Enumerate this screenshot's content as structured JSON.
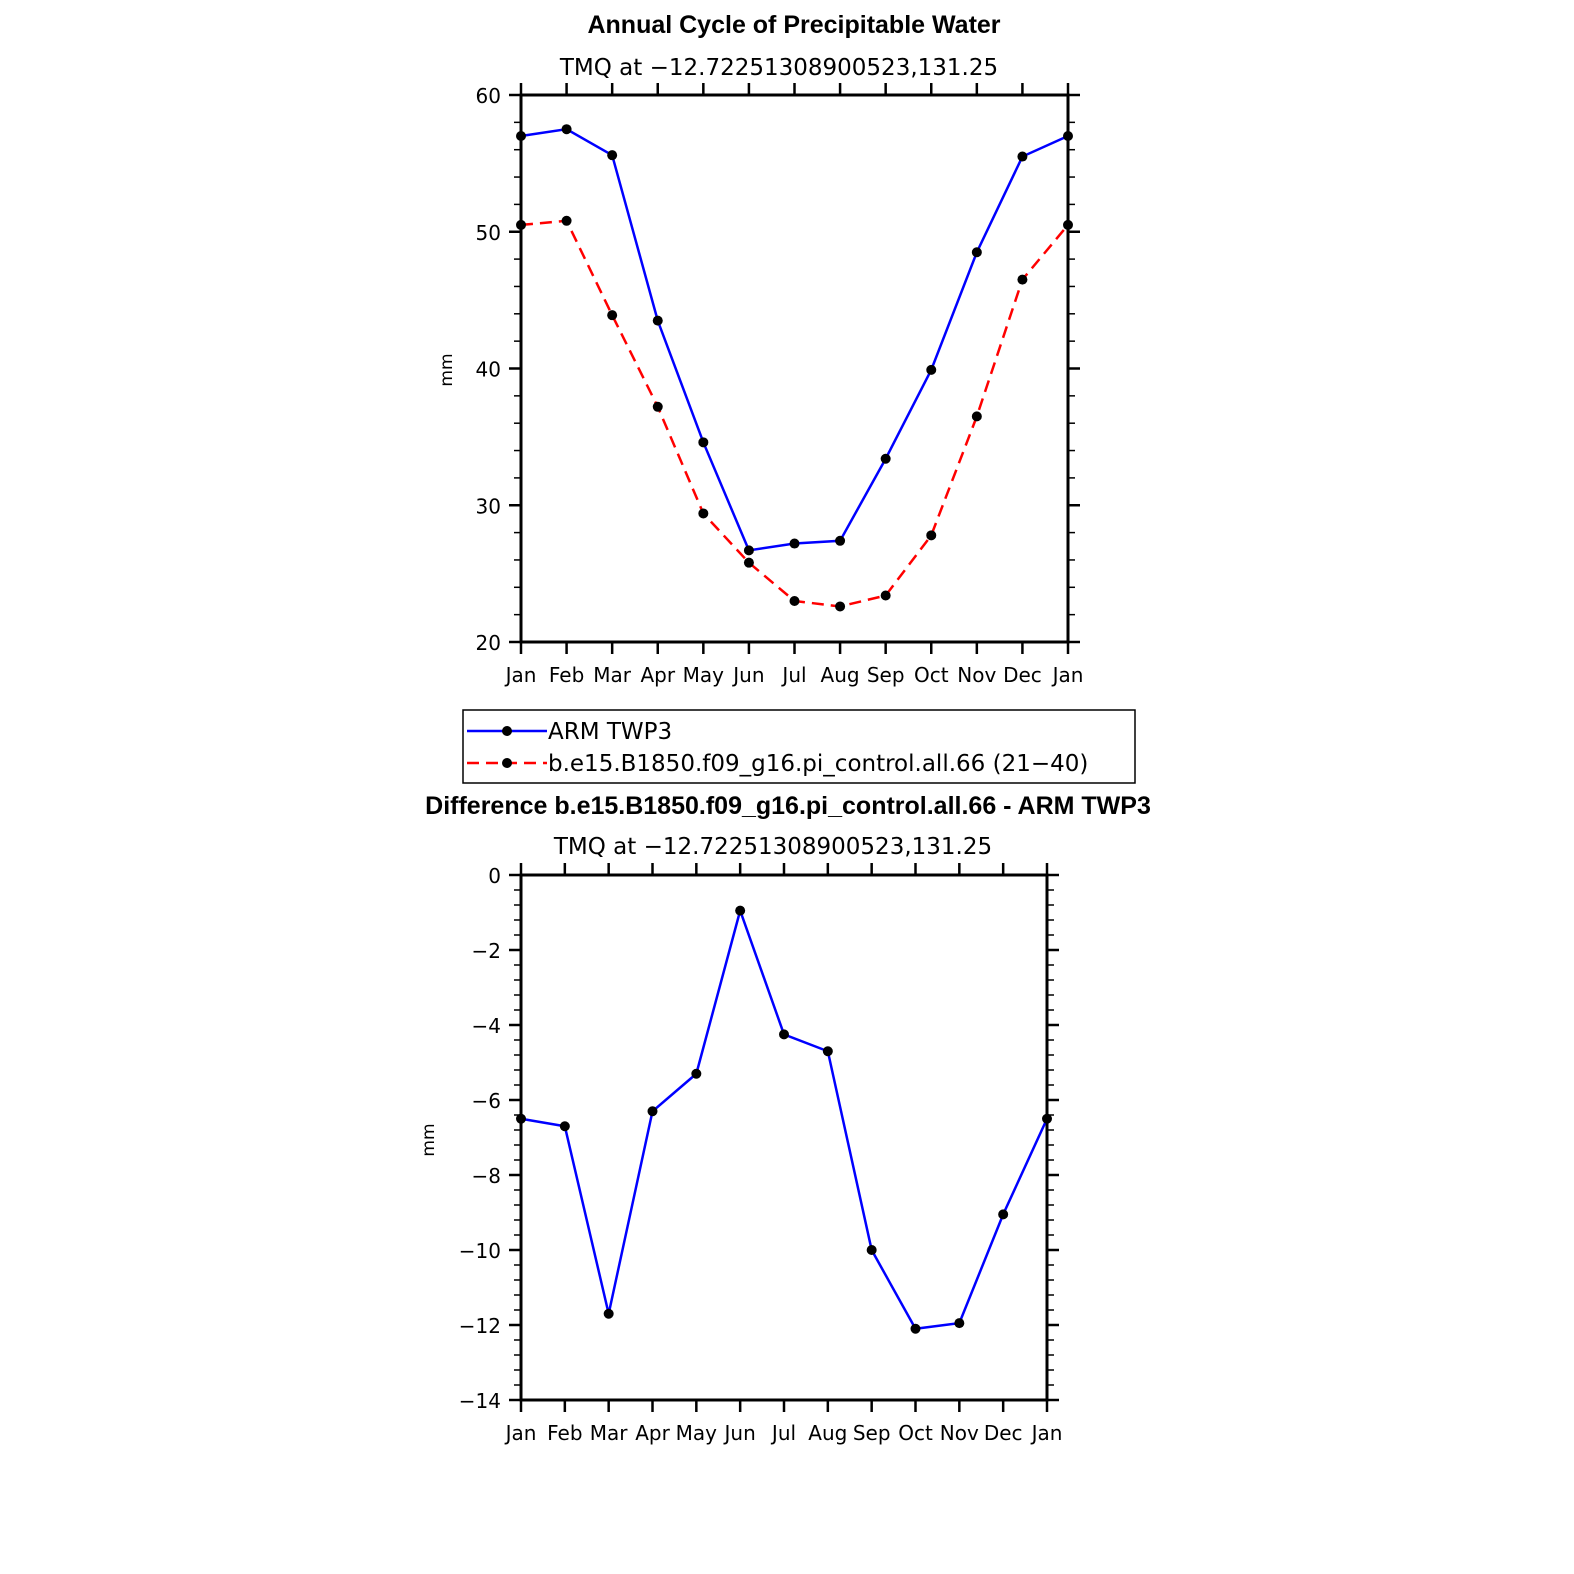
{
  "chart_data": [
    {
      "type": "line",
      "title": "Annual Cycle of Precipitable Water",
      "subtitle": "TMQ at −12.72251308900523,131.25",
      "xlabel": "",
      "ylabel": "mm",
      "categories": [
        "Jan",
        "Feb",
        "Mar",
        "Apr",
        "May",
        "Jun",
        "Jul",
        "Aug",
        "Sep",
        "Oct",
        "Nov",
        "Dec",
        "Jan"
      ],
      "ylim": [
        20,
        60
      ],
      "yticks": [
        "20",
        "30",
        "40",
        "50",
        "60"
      ],
      "series": [
        {
          "name": "ARM TWP3",
          "color": "#0000ff",
          "style": "solid",
          "values": [
            57.0,
            57.5,
            55.6,
            43.5,
            34.6,
            26.7,
            27.2,
            27.4,
            33.4,
            39.9,
            48.5,
            55.5,
            57.0
          ]
        },
        {
          "name": "b.e15.B1850.f09_g16.pi_control.all.66 (21−40)",
          "color": "#ff0000",
          "style": "dashed",
          "values": [
            50.5,
            50.8,
            43.9,
            37.2,
            29.4,
            25.8,
            23.0,
            22.6,
            23.4,
            27.8,
            36.5,
            46.5,
            50.5
          ]
        }
      ]
    },
    {
      "type": "line",
      "title": "Difference b.e15.B1850.f09_g16.pi_control.all.66 - ARM TWP3",
      "subtitle": "TMQ at −12.72251308900523,131.25",
      "xlabel": "",
      "ylabel": "mm",
      "categories": [
        "Jan",
        "Feb",
        "Mar",
        "Apr",
        "May",
        "Jun",
        "Jul",
        "Aug",
        "Sep",
        "Oct",
        "Nov",
        "Dec",
        "Jan"
      ],
      "ylim": [
        -14,
        0
      ],
      "yticks": [
        "−14",
        "−12",
        "−10",
        "−8",
        "−6",
        "−4",
        "−2",
        "0"
      ],
      "series": [
        {
          "name": "Difference",
          "color": "#0000ff",
          "style": "solid",
          "values": [
            -6.5,
            -6.7,
            -11.7,
            -6.3,
            -5.3,
            -0.95,
            -4.25,
            -4.7,
            -10.0,
            -12.1,
            -11.95,
            -9.05,
            -6.5
          ]
        }
      ]
    }
  ]
}
